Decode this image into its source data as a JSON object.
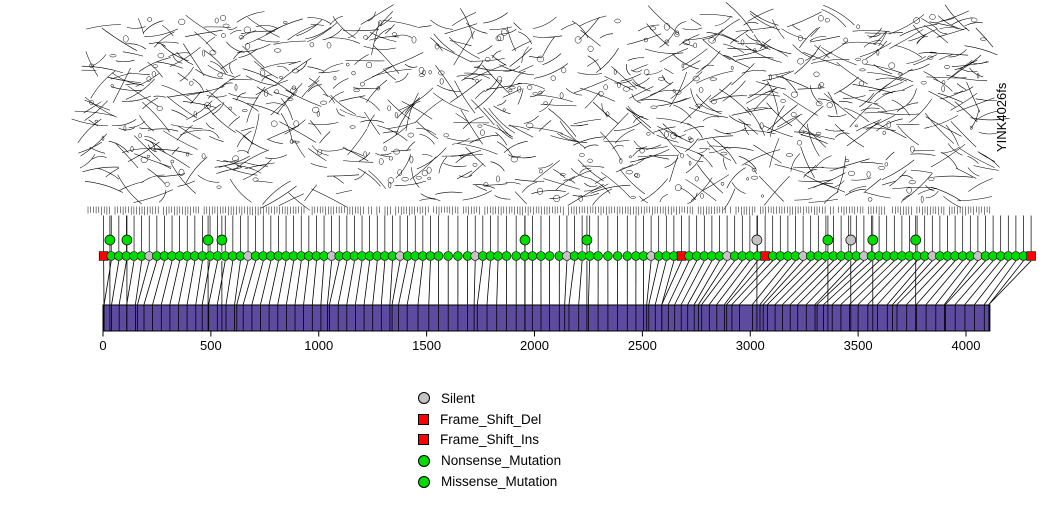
{
  "chart_data": {
    "type": "lollipop",
    "title": "",
    "xlabel": "",
    "ylabel": "",
    "gene_label": "YINK4026fs",
    "x_tick_values": [
      0,
      500,
      1000,
      1500,
      2000,
      2500,
      3000,
      3500,
      4000
    ],
    "x_tick_labels": [
      "0",
      "500",
      "1000",
      "1500",
      "2000",
      "2500",
      "3000",
      "3500",
      "4000"
    ],
    "x_range": [
      0,
      4111
    ],
    "protein_length": 4111,
    "colors": {
      "Missense_Mutation": "#00DC00",
      "Nonsense_Mutation": "#00DC00",
      "Silent": "#C3C3C3",
      "Frame_Shift_Del": "#FF0000",
      "Frame_Shift_Ins": "#FF0000",
      "gene_body": "#5C4B9F"
    },
    "legend": [
      {
        "label": "Silent",
        "shape": "circle",
        "color": "#C3C3C3"
      },
      {
        "label": "Frame_Shift_Del",
        "shape": "square",
        "color": "#FF0000"
      },
      {
        "label": "Frame_Shift_Ins",
        "shape": "square",
        "color": "#FF0000"
      },
      {
        "label": "Nonsense_Mutation",
        "shape": "circle",
        "color": "#00DC00"
      },
      {
        "label": "Missense_Mutation",
        "shape": "circle",
        "color": "#00DC00"
      }
    ],
    "mutations": {
      "Missense_Mutation": [
        5,
        40,
        75,
        110,
        150,
        190,
        230,
        270,
        310,
        350,
        390,
        430,
        460,
        490,
        530,
        570,
        610,
        650,
        690,
        730,
        770,
        810,
        850,
        890,
        930,
        970,
        1010,
        1050,
        1090,
        1130,
        1170,
        1210,
        1250,
        1290,
        1330,
        1370,
        1410,
        1460,
        1510,
        1555,
        1600,
        1645,
        1690,
        1735,
        1780,
        1825,
        1870,
        1915,
        1955,
        1990,
        2030,
        2070,
        2115,
        2160,
        2205,
        2250,
        2295,
        2340,
        2385,
        2430,
        2470,
        2505,
        2530,
        2560,
        2590,
        2620,
        2650,
        2680,
        2710,
        2740,
        2775,
        2810,
        2845,
        2880,
        2915,
        2950,
        3010,
        3045,
        3080,
        3115,
        3150,
        3185,
        3220,
        3260,
        3300,
        3340,
        3380,
        3420,
        3460,
        3500,
        3545,
        3590,
        3635,
        3680,
        3725,
        3770,
        3815,
        3860,
        3905,
        3950,
        3995,
        4040,
        4085,
        4120
      ],
      "Silent": [
        160,
        620,
        1040,
        1340,
        1720,
        2140,
        2520,
        2760,
        3060,
        3310,
        3660,
        3900
      ],
      "Frame_Shift_Del": [
        3,
        2590
      ],
      "Frame_Shift_Ins": [
        2891,
        4140
      ],
      "raised": {
        "Missense_Mutation": [
          32,
          111,
          487,
          551,
          1956,
          2243,
          3360,
          3568,
          3767
        ],
        "Silent": [
          3031,
          3466
        ]
      }
    }
  }
}
